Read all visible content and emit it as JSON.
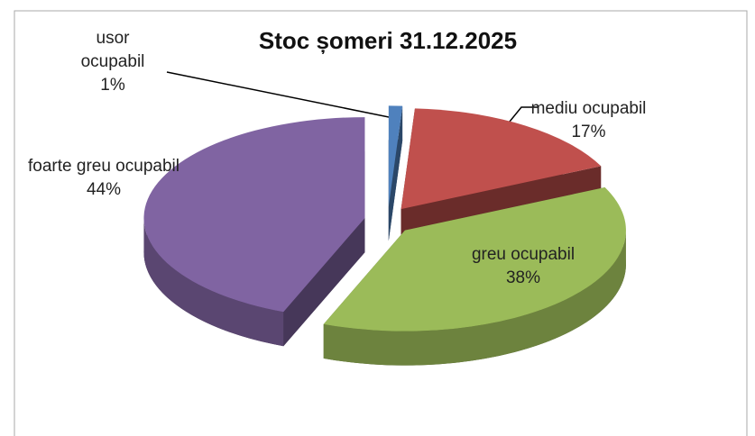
{
  "chart_data": {
    "type": "pie",
    "title": "Stoc șomeri 31.12.2025",
    "categories": [
      "usor ocupabil",
      "mediu ocupabil",
      "greu ocupabil",
      "foarte greu ocupabil"
    ],
    "values": [
      1,
      17,
      38,
      44
    ],
    "value_labels": [
      "1%",
      "17%",
      "38%",
      "44%"
    ],
    "colors": [
      "#4f81bd",
      "#c0504d",
      "#9bbb59",
      "#8064a2"
    ]
  }
}
